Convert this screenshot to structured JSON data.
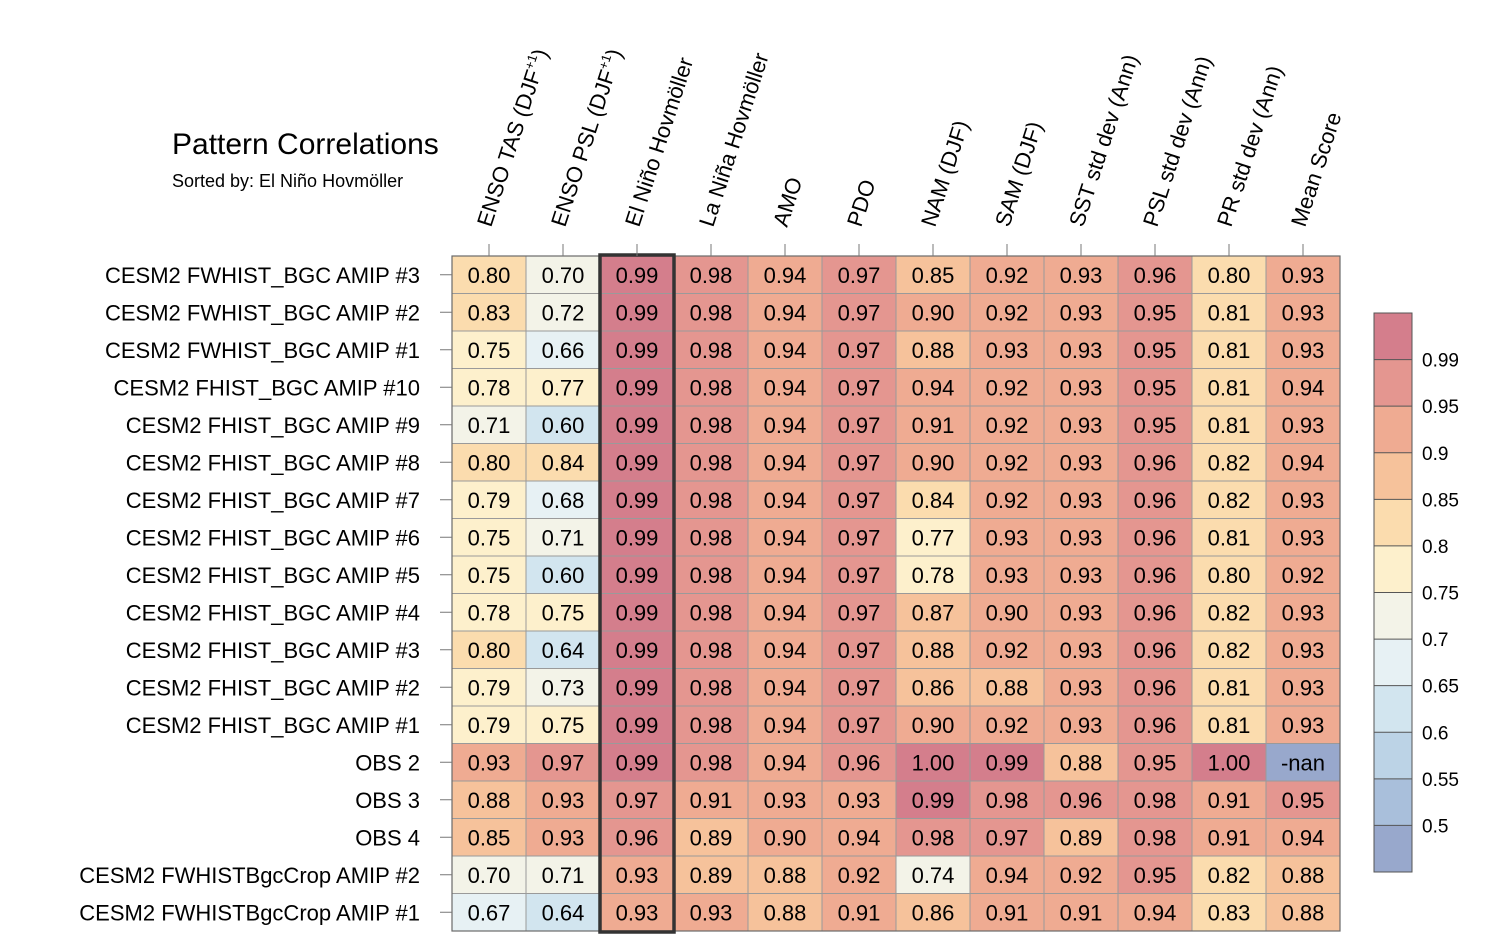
{
  "chart_data": {
    "type": "heatmap",
    "title": "Pattern Correlations",
    "subtitle": "Sorted by: El Niño Hovmöller",
    "columns": [
      {
        "label": "ENSO TAS (DJF",
        "sup": "+1",
        "tail": ")"
      },
      {
        "label": "ENSO PSL (DJF",
        "sup": "+1",
        "tail": ")"
      },
      {
        "label": "El Niño Hovmöller"
      },
      {
        "label": "La Niña Hovmöller"
      },
      {
        "label": "AMO"
      },
      {
        "label": "PDO"
      },
      {
        "label": "NAM (DJF)"
      },
      {
        "label": "SAM (DJF)"
      },
      {
        "label": "SST std dev (Ann)"
      },
      {
        "label": "PSL std dev (Ann)"
      },
      {
        "label": "PR std dev (Ann)"
      },
      {
        "label": "Mean Score"
      }
    ],
    "highlight_column": 2,
    "rows": [
      {
        "label": "CESM2 FWHIST_BGC AMIP #3",
        "values": [
          "0.80",
          "0.70",
          "0.99",
          "0.98",
          "0.94",
          "0.97",
          "0.85",
          "0.92",
          "0.93",
          "0.96",
          "0.80",
          "0.93"
        ]
      },
      {
        "label": "CESM2 FWHIST_BGC AMIP #2",
        "values": [
          "0.83",
          "0.72",
          "0.99",
          "0.98",
          "0.94",
          "0.97",
          "0.90",
          "0.92",
          "0.93",
          "0.95",
          "0.81",
          "0.93"
        ]
      },
      {
        "label": "CESM2 FWHIST_BGC AMIP #1",
        "values": [
          "0.75",
          "0.66",
          "0.99",
          "0.98",
          "0.94",
          "0.97",
          "0.88",
          "0.93",
          "0.93",
          "0.95",
          "0.81",
          "0.93"
        ]
      },
      {
        "label": "CESM2 FHIST_BGC AMIP #10",
        "values": [
          "0.78",
          "0.77",
          "0.99",
          "0.98",
          "0.94",
          "0.97",
          "0.94",
          "0.92",
          "0.93",
          "0.95",
          "0.81",
          "0.94"
        ]
      },
      {
        "label": "CESM2 FHIST_BGC AMIP #9",
        "values": [
          "0.71",
          "0.60",
          "0.99",
          "0.98",
          "0.94",
          "0.97",
          "0.91",
          "0.92",
          "0.93",
          "0.95",
          "0.81",
          "0.93"
        ]
      },
      {
        "label": "CESM2 FHIST_BGC AMIP #8",
        "values": [
          "0.80",
          "0.84",
          "0.99",
          "0.98",
          "0.94",
          "0.97",
          "0.90",
          "0.92",
          "0.93",
          "0.96",
          "0.82",
          "0.94"
        ]
      },
      {
        "label": "CESM2 FHIST_BGC AMIP #7",
        "values": [
          "0.79",
          "0.68",
          "0.99",
          "0.98",
          "0.94",
          "0.97",
          "0.84",
          "0.92",
          "0.93",
          "0.96",
          "0.82",
          "0.93"
        ]
      },
      {
        "label": "CESM2 FHIST_BGC AMIP #6",
        "values": [
          "0.75",
          "0.71",
          "0.99",
          "0.98",
          "0.94",
          "0.97",
          "0.77",
          "0.93",
          "0.93",
          "0.96",
          "0.81",
          "0.93"
        ]
      },
      {
        "label": "CESM2 FHIST_BGC AMIP #5",
        "values": [
          "0.75",
          "0.60",
          "0.99",
          "0.98",
          "0.94",
          "0.97",
          "0.78",
          "0.93",
          "0.93",
          "0.96",
          "0.80",
          "0.92"
        ]
      },
      {
        "label": "CESM2 FHIST_BGC AMIP #4",
        "values": [
          "0.78",
          "0.75",
          "0.99",
          "0.98",
          "0.94",
          "0.97",
          "0.87",
          "0.90",
          "0.93",
          "0.96",
          "0.82",
          "0.93"
        ]
      },
      {
        "label": "CESM2 FHIST_BGC AMIP #3",
        "values": [
          "0.80",
          "0.64",
          "0.99",
          "0.98",
          "0.94",
          "0.97",
          "0.88",
          "0.92",
          "0.93",
          "0.96",
          "0.82",
          "0.93"
        ]
      },
      {
        "label": "CESM2 FHIST_BGC AMIP #2",
        "values": [
          "0.79",
          "0.73",
          "0.99",
          "0.98",
          "0.94",
          "0.97",
          "0.86",
          "0.88",
          "0.93",
          "0.96",
          "0.81",
          "0.93"
        ]
      },
      {
        "label": "CESM2 FHIST_BGC AMIP #1",
        "values": [
          "0.79",
          "0.75",
          "0.99",
          "0.98",
          "0.94",
          "0.97",
          "0.90",
          "0.92",
          "0.93",
          "0.96",
          "0.81",
          "0.93"
        ]
      },
      {
        "label": "OBS 2",
        "values": [
          "0.93",
          "0.97",
          "0.99",
          "0.98",
          "0.94",
          "0.96",
          "1.00",
          "0.99",
          "0.88",
          "0.95",
          "1.00",
          "-nan"
        ]
      },
      {
        "label": "OBS 3",
        "values": [
          "0.88",
          "0.93",
          "0.97",
          "0.91",
          "0.93",
          "0.93",
          "0.99",
          "0.98",
          "0.96",
          "0.98",
          "0.91",
          "0.95"
        ]
      },
      {
        "label": "OBS 4",
        "values": [
          "0.85",
          "0.93",
          "0.96",
          "0.89",
          "0.90",
          "0.94",
          "0.98",
          "0.97",
          "0.89",
          "0.98",
          "0.91",
          "0.94"
        ]
      },
      {
        "label": "CESM2 FWHISTBgcCrop AMIP #2",
        "values": [
          "0.70",
          "0.71",
          "0.93",
          "0.89",
          "0.88",
          "0.92",
          "0.74",
          "0.94",
          "0.92",
          "0.95",
          "0.82",
          "0.88"
        ]
      },
      {
        "label": "CESM2 FWHISTBgcCrop AMIP #1",
        "values": [
          "0.67",
          "0.64",
          "0.93",
          "0.93",
          "0.88",
          "0.91",
          "0.86",
          "0.91",
          "0.91",
          "0.94",
          "0.83",
          "0.88"
        ]
      }
    ],
    "colorbar": {
      "levels": [
        0.5,
        0.55,
        0.6,
        0.65,
        0.7,
        0.75,
        0.8,
        0.85,
        0.9,
        0.95,
        0.99
      ],
      "tick_labels": [
        "0.5",
        "0.55",
        "0.6",
        "0.65",
        "0.7",
        "0.75",
        "0.8",
        "0.85",
        "0.9",
        "0.95",
        "0.99"
      ],
      "colors": [
        "#98a8cc",
        "#a9bfdb",
        "#bcd3e6",
        "#d2e5ef",
        "#e7f1f4",
        "#f3f3e8",
        "#fdf0cc",
        "#fbdcae",
        "#f6c29b",
        "#efab92",
        "#e49690",
        "#d47e8c"
      ],
      "nan_color": "#98a8cc"
    }
  }
}
